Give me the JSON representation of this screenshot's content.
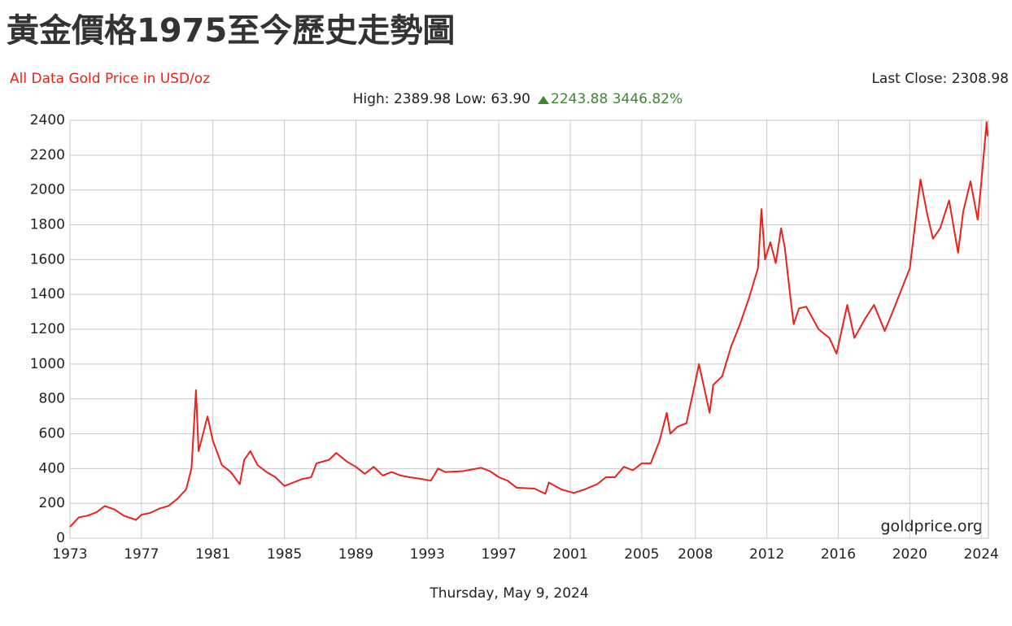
{
  "chart_data": {
    "type": "line",
    "title": "黃金價格1975至今歷史走勢圖",
    "subtitle": "All Data Gold Price in USD/oz",
    "last_close": "Last Close: 2308.98",
    "stats": "High: 2389.98 Low: 63.90",
    "change": "2243.88 3446.82%",
    "watermark": "goldprice.org",
    "date": "Thursday, May 9, 2024",
    "color": "#e8231a",
    "grid": true,
    "xlim": [
      1973,
      2024.4
    ],
    "xticks": [
      1973,
      1977,
      1981,
      1985,
      1989,
      1993,
      1997,
      2001,
      2005,
      2008,
      2012,
      2016,
      2020,
      2024
    ],
    "ylim": [
      0,
      2400
    ],
    "yticks": [
      0,
      200,
      400,
      600,
      800,
      1000,
      1200,
      1400,
      1600,
      1800,
      2000,
      2200,
      2400
    ],
    "x": [
      1973.0,
      1973.5,
      1974.0,
      1974.5,
      1974.95,
      1975.5,
      1976.0,
      1976.7,
      1977.0,
      1977.5,
      1978.0,
      1978.5,
      1979.0,
      1979.5,
      1979.8,
      1980.05,
      1980.2,
      1980.7,
      1981.0,
      1981.5,
      1982.0,
      1982.5,
      1982.75,
      1983.1,
      1983.5,
      1984.0,
      1984.5,
      1985.0,
      1985.5,
      1986.0,
      1986.5,
      1986.8,
      1987.5,
      1987.9,
      1988.5,
      1989.0,
      1989.5,
      1990.0,
      1990.5,
      1991.0,
      1991.5,
      1992.0,
      1992.7,
      1993.2,
      1993.6,
      1994.0,
      1995.0,
      1996.0,
      1996.5,
      1997.0,
      1997.5,
      1998.0,
      1999.0,
      1999.6,
      1999.8,
      2000.5,
      2001.2,
      2001.8,
      2002.5,
      2003.0,
      2003.5,
      2004.0,
      2004.5,
      2005.0,
      2005.5,
      2006.0,
      2006.4,
      2006.6,
      2007.0,
      2007.5,
      2008.0,
      2008.2,
      2008.8,
      2009.0,
      2009.5,
      2010.0,
      2010.5,
      2011.0,
      2011.5,
      2011.7,
      2011.9,
      2012.2,
      2012.5,
      2012.8,
      2013.0,
      2013.3,
      2013.5,
      2013.8,
      2014.2,
      2014.9,
      2015.5,
      2015.9,
      2016.5,
      2016.9,
      2017.5,
      2018.0,
      2018.6,
      2019.0,
      2019.5,
      2020.0,
      2020.6,
      2021.0,
      2021.3,
      2021.7,
      2022.2,
      2022.7,
      2023.0,
      2023.4,
      2023.8,
      2024.0,
      2024.3,
      2024.35
    ],
    "values": [
      65,
      120,
      130,
      150,
      185,
      165,
      130,
      105,
      135,
      145,
      170,
      185,
      225,
      280,
      400,
      850,
      500,
      700,
      560,
      420,
      380,
      310,
      450,
      500,
      420,
      380,
      350,
      300,
      320,
      340,
      350,
      430,
      450,
      490,
      440,
      410,
      370,
      410,
      360,
      380,
      360,
      350,
      340,
      330,
      400,
      380,
      385,
      405,
      385,
      350,
      330,
      290,
      285,
      255,
      320,
      280,
      260,
      280,
      310,
      350,
      350,
      410,
      390,
      430,
      430,
      560,
      720,
      600,
      640,
      660,
      900,
      1000,
      720,
      880,
      930,
      1100,
      1230,
      1380,
      1550,
      1890,
      1600,
      1700,
      1580,
      1780,
      1670,
      1400,
      1230,
      1320,
      1330,
      1200,
      1150,
      1060,
      1340,
      1150,
      1260,
      1340,
      1190,
      1290,
      1420,
      1550,
      2060,
      1850,
      1720,
      1780,
      1940,
      1640,
      1880,
      2050,
      1830,
      2040,
      2390,
      2308.98
    ]
  }
}
